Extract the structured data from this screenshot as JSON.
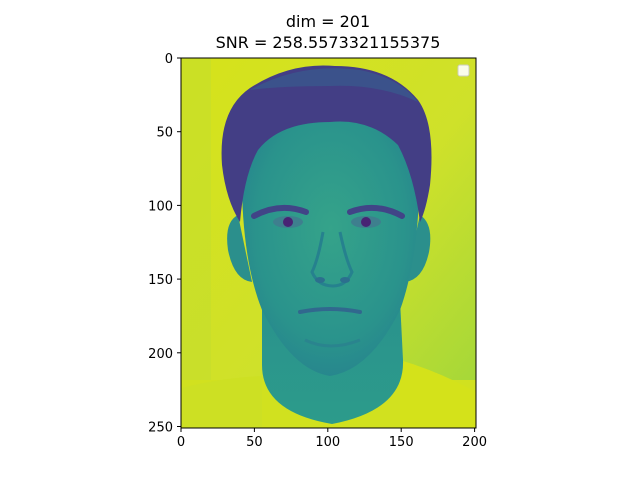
{
  "figure": {
    "title_lines": [
      "dim = 201",
      "SNR = 258.5573321155375"
    ],
    "colormap": "viridis",
    "background_color": "#d4e21a",
    "face_color": "#2a9d8e",
    "hair_color": "#3e4a89",
    "shirt_color": "#cddf1f"
  },
  "axes": {
    "x_ticks": [
      "0",
      "50",
      "100",
      "150",
      "200"
    ],
    "y_ticks": [
      "0",
      "50",
      "100",
      "150",
      "200",
      "250"
    ],
    "x_range": [
      0,
      201
    ],
    "y_range": [
      0,
      251
    ],
    "y_inverted": true
  },
  "legend": {
    "placement": "top-right",
    "entries": []
  }
}
